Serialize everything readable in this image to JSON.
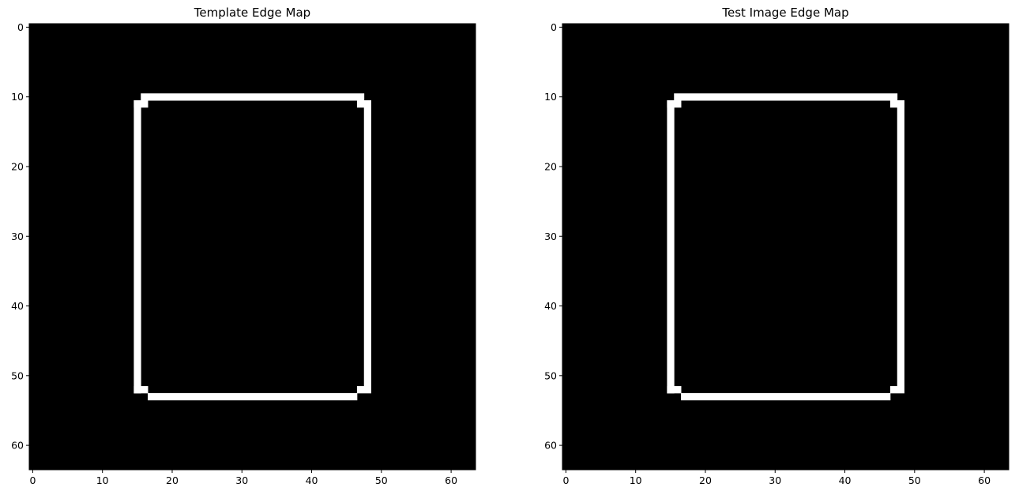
{
  "chart_data": [
    {
      "type": "heatmap",
      "title": "Template Edge Map",
      "xlabel": "",
      "ylabel": "",
      "image_size": [
        64,
        64
      ],
      "xlim": [
        -0.5,
        63.5
      ],
      "ylim": [
        63.5,
        -0.5
      ],
      "xticks": [
        0,
        10,
        20,
        30,
        40,
        50,
        60
      ],
      "yticks": [
        0,
        10,
        20,
        30,
        40,
        50,
        60
      ],
      "colormap": "gray",
      "background_value": 0,
      "edge_value": 1,
      "background_color": "#000000",
      "edge_color": "#ffffff",
      "edge_pixels": {
        "top": {
          "row": 10,
          "cols": [
            16,
            47
          ]
        },
        "top_left_step": {
          "row": 11,
          "cols": [
            15,
            16
          ]
        },
        "top_right_step": {
          "row": 11,
          "cols": [
            47,
            48
          ]
        },
        "left": {
          "col": 15,
          "rows": [
            11,
            52
          ]
        },
        "right": {
          "col": 48,
          "rows": [
            11,
            51
          ]
        },
        "bottom_left_step": {
          "row": 52,
          "cols": [
            15,
            16
          ]
        },
        "bottom_right_step": {
          "row": 52,
          "cols": [
            47,
            48
          ]
        },
        "bottom": {
          "row": 53,
          "cols": [
            17,
            46
          ]
        }
      }
    },
    {
      "type": "heatmap",
      "title": "Test Image Edge Map",
      "xlabel": "",
      "ylabel": "",
      "image_size": [
        64,
        64
      ],
      "xlim": [
        -0.5,
        63.5
      ],
      "ylim": [
        63.5,
        -0.5
      ],
      "xticks": [
        0,
        10,
        20,
        30,
        40,
        50,
        60
      ],
      "yticks": [
        0,
        10,
        20,
        30,
        40,
        50,
        60
      ],
      "colormap": "gray",
      "background_value": 0,
      "edge_value": 1,
      "background_color": "#000000",
      "edge_color": "#ffffff",
      "edge_pixels": {
        "top": {
          "row": 10,
          "cols": [
            16,
            47
          ]
        },
        "top_left_step": {
          "row": 11,
          "cols": [
            15,
            16
          ]
        },
        "top_right_step": {
          "row": 11,
          "cols": [
            47,
            48
          ]
        },
        "left": {
          "col": 15,
          "rows": [
            11,
            52
          ]
        },
        "right": {
          "col": 48,
          "rows": [
            11,
            51
          ]
        },
        "bottom_left_step": {
          "row": 52,
          "cols": [
            15,
            16
          ]
        },
        "bottom_right_step": {
          "row": 52,
          "cols": [
            47,
            48
          ]
        },
        "bottom": {
          "row": 53,
          "cols": [
            17,
            46
          ]
        }
      }
    }
  ]
}
